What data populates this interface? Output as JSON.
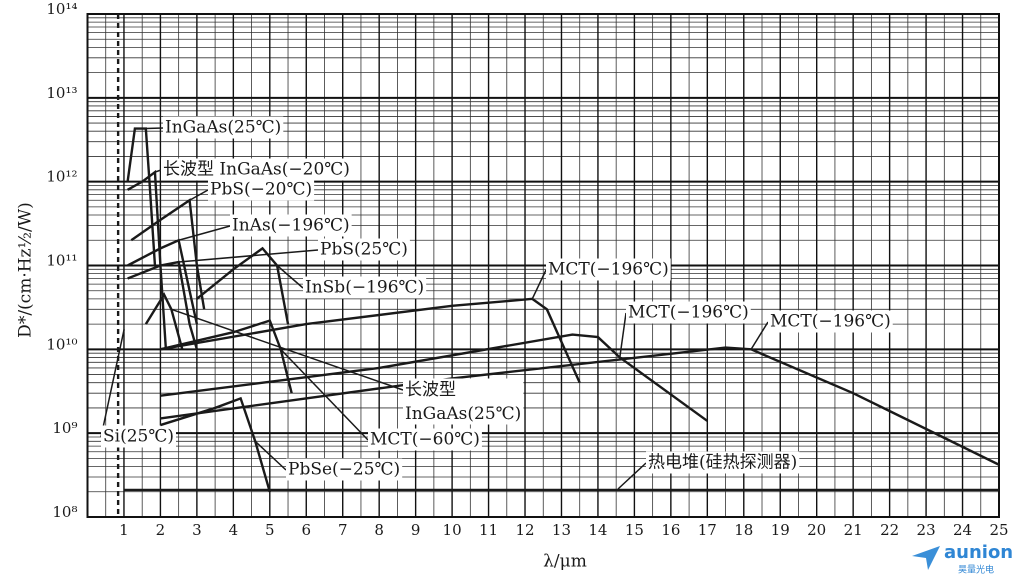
{
  "chart_data": {
    "type": "line",
    "y_label": "D*/(cm·Hz½/W)",
    "x_label": "λ/μm",
    "xlim": [
      0,
      25
    ],
    "ylim": [
      100000000.0,
      100000000000000.0
    ],
    "log_y": true,
    "grid": true,
    "color": "#1a1a1a",
    "xticks": [
      1,
      2,
      3,
      4,
      5,
      6,
      7,
      8,
      9,
      10,
      11,
      12,
      13,
      14,
      15,
      16,
      17,
      18,
      19,
      20,
      21,
      22,
      23,
      24,
      25
    ],
    "yticks": [
      {
        "value": 100000000.0,
        "label": "10⁸"
      },
      {
        "value": 1000000000.0,
        "label": "10⁹"
      },
      {
        "value": 10000000000.0,
        "label": "10¹⁰"
      },
      {
        "value": 100000000000.0,
        "label": "10¹¹"
      },
      {
        "value": 1000000000000.0,
        "label": "10¹²"
      },
      {
        "value": 10000000000000.0,
        "label": "10¹³"
      },
      {
        "value": 100000000000000.0,
        "label": "10¹⁴"
      }
    ],
    "series": [
      {
        "name": "InGaAs(25℃)",
        "x": [
          1.1,
          1.3,
          1.6,
          1.7,
          1.85
        ],
        "values": [
          1000000000000.0,
          4300000000000.0,
          4300000000000.0,
          1000000000000.0,
          100000000000.0
        ]
      },
      {
        "name": "长波型 InGaAs(−20℃)",
        "x": [
          1.1,
          1.5,
          1.85,
          2.0,
          2.15
        ],
        "values": [
          800000000000.0,
          1000000000000.0,
          1300000000000.0,
          100000000000.0,
          10000000000.0
        ]
      },
      {
        "name": "PbS(−20℃)",
        "x": [
          1.2,
          2.0,
          2.8,
          3.0,
          3.2
        ],
        "values": [
          200000000000.0,
          350000000000.0,
          600000000000.0,
          100000000000.0,
          30000000000.0
        ]
      },
      {
        "name": "InAs(−196℃)",
        "x": [
          1.1,
          2.0,
          2.5,
          2.8,
          3.0
        ],
        "values": [
          100000000000.0,
          160000000000.0,
          200000000000.0,
          50000000000.0,
          20000000000.0
        ]
      },
      {
        "name": "PbS(25℃)",
        "x": [
          1.1,
          2.0,
          2.5,
          2.8,
          3.0
        ],
        "values": [
          70000000000.0,
          100000000000.0,
          110000000000.0,
          20000000000.0,
          10000000000.0
        ]
      },
      {
        "name": "InSb(−196℃)",
        "x": [
          3.0,
          4.0,
          4.8,
          5.2,
          5.5
        ],
        "values": [
          40000000000.0,
          90000000000.0,
          160000000000.0,
          100000000000.0,
          20000000000.0
        ]
      },
      {
        "name": "MCT(−196℃)",
        "x": [
          2.0,
          6.0,
          10.0,
          12.2,
          12.6,
          13.5
        ],
        "values": [
          10000000000.0,
          20000000000.0,
          33000000000.0,
          40000000000.0,
          30000000000.0,
          4000000000.0
        ]
      },
      {
        "name": "MCT(−196℃)",
        "x": [
          2.0,
          8.0,
          13.3,
          14.0,
          14.6,
          17.0
        ],
        "values": [
          2800000000.0,
          6000000000.0,
          15000000000.0,
          14000000000.0,
          8000000000.0,
          1400000000.0
        ]
      },
      {
        "name": "MCT(−196℃)",
        "x": [
          2.0,
          10.0,
          17.5,
          18.2,
          21.0,
          25.0
        ],
        "values": [
          1500000000.0,
          4500000000.0,
          10500000000.0,
          10000000000.0,
          3000000000.0,
          420000000.0
        ]
      },
      {
        "name": "长波型 InGaAs(25℃)",
        "x": [
          1.6,
          2.1,
          2.3,
          2.6
        ],
        "values": [
          20000000000.0,
          45000000000.0,
          30000000000.0,
          10000000000.0
        ]
      },
      {
        "name": "MCT(−60℃)",
        "x": [
          2.0,
          4.0,
          5.0,
          5.3,
          5.6
        ],
        "values": [
          10000000000.0,
          16000000000.0,
          22000000000.0,
          10000000000.0,
          3000000000.0
        ]
      },
      {
        "name": "Si(25℃)",
        "dashed": true,
        "x": [
          0.84,
          0.84
        ],
        "values": [
          100000000000000.0,
          100000000.0
        ]
      },
      {
        "name": "PbSe(−25℃)",
        "x": [
          2.0,
          3.5,
          4.2,
          4.6,
          5.0
        ],
        "values": [
          1250000000.0,
          2000000000.0,
          2600000000.0,
          800000000.0,
          200000000.0
        ]
      },
      {
        "name": "热电堆(硅热探测器)",
        "x": [
          1.0,
          25.0
        ],
        "values": [
          210000000.0,
          210000000.0
        ]
      }
    ]
  },
  "watermark": {
    "text": "aunion",
    "subtext": "昊量光电"
  }
}
